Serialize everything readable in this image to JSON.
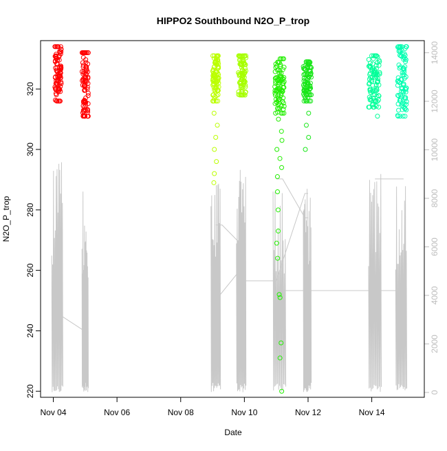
{
  "chart_data": {
    "type": "scatter",
    "title": "HIPPO2 Southbound N2O_P_trop",
    "xlabel": "Date",
    "ylabel": "N2O_P_trop",
    "y2label": "",
    "x_range_days": [
      3.6,
      15.65
    ],
    "x_origin": "Nov 00",
    "ylim": [
      218,
      336
    ],
    "y2lim": [
      -200,
      14500
    ],
    "x_ticks": [
      {
        "value": 4,
        "label": "Nov 04"
      },
      {
        "value": 6,
        "label": "Nov 06"
      },
      {
        "value": 8,
        "label": "Nov 08"
      },
      {
        "value": 10,
        "label": "Nov 10"
      },
      {
        "value": 12,
        "label": "Nov 12"
      },
      {
        "value": 14,
        "label": "Nov 14"
      }
    ],
    "y_ticks": [
      {
        "value": 220,
        "label": "220"
      },
      {
        "value": 240,
        "label": "240"
      },
      {
        "value": 260,
        "label": "260"
      },
      {
        "value": 280,
        "label": "280"
      },
      {
        "value": 300,
        "label": "300"
      },
      {
        "value": 320,
        "label": "320"
      }
    ],
    "y2_ticks": [
      {
        "value": 0,
        "label": "0"
      },
      {
        "value": 2000,
        "label": "2000"
      },
      {
        "value": 4000,
        "label": "4000"
      },
      {
        "value": 6000,
        "label": "6000"
      },
      {
        "value": 8000,
        "label": "8000"
      },
      {
        "value": 10000,
        "label": "10000"
      },
      {
        "value": 12000,
        "label": "12000"
      },
      {
        "value": 14000,
        "label": "14000"
      }
    ],
    "grid": false,
    "legend": "none",
    "series": [
      {
        "color": "#ff0000",
        "x": [
          4.05,
          4.25
        ],
        "y_range": [
          316,
          334
        ],
        "tail": []
      },
      {
        "color": "#ff0000",
        "x": [
          4.9,
          5.1
        ],
        "y_range": [
          311,
          332
        ],
        "tail": []
      },
      {
        "color": "#bbff00",
        "x": [
          9.0,
          9.2
        ],
        "y_range": [
          316,
          331
        ],
        "tail": [
          289,
          292,
          296,
          300,
          304,
          308,
          312
        ]
      },
      {
        "color": "#a6ff00",
        "x": [
          9.8,
          10.05
        ],
        "y_range": [
          318,
          331
        ],
        "tail": []
      },
      {
        "color": "#22ee00",
        "x": [
          10.95,
          11.25
        ],
        "y_range": [
          312,
          330
        ],
        "tail": [
          220,
          231,
          236,
          251,
          252,
          264,
          269,
          273,
          280,
          286,
          291,
          294,
          297,
          300,
          303,
          306,
          310
        ]
      },
      {
        "color": "#18e618",
        "x": [
          11.85,
          12.1
        ],
        "y_range": [
          316,
          329
        ],
        "tail": [
          300,
          304,
          308,
          312
        ]
      },
      {
        "color": "#00ff99",
        "x": [
          13.9,
          14.25
        ],
        "y_range": [
          314,
          331
        ],
        "tail": [
          311
        ]
      },
      {
        "color": "#00ffb0",
        "x": [
          14.8,
          15.1
        ],
        "y_range": [
          311,
          334
        ],
        "tail": []
      }
    ],
    "altitude_track": {
      "color": "#c8c8c8",
      "flights": [
        {
          "x": [
            3.95,
            4.3
          ],
          "max": 9500
        },
        {
          "x": [
            4.9,
            5.1
          ],
          "max": 8500
        },
        {
          "x": [
            8.95,
            9.25
          ],
          "max": 9000
        },
        {
          "x": [
            9.75,
            10.05
          ],
          "max": 9200
        },
        {
          "x": [
            10.9,
            11.3
          ],
          "max": 8700
        },
        {
          "x": [
            11.85,
            12.1
          ],
          "max": 9000
        },
        {
          "x": [
            13.9,
            14.3
          ],
          "max": 9200
        },
        {
          "x": [
            14.75,
            15.1
          ],
          "max": 8800
        }
      ],
      "connectors": [
        [
          [
            4.1,
            4200
          ],
          [
            4.2,
            3200
          ],
          [
            4.9,
            2600
          ],
          [
            5.0,
            2200
          ]
        ],
        [
          [
            9.0,
            3500
          ],
          [
            9.1,
            3800
          ],
          [
            9.9,
            5100
          ],
          [
            10.0,
            4800
          ]
        ],
        [
          [
            9.1,
            6900
          ],
          [
            9.3,
            6900
          ],
          [
            9.9,
            6100
          ],
          [
            10.0,
            6100
          ]
        ],
        [
          [
            10.0,
            4600
          ],
          [
            11.0,
            4600
          ],
          [
            11.9,
            8200
          ],
          [
            12.0,
            8200
          ]
        ],
        [
          [
            11.0,
            8800
          ],
          [
            11.2,
            8800
          ],
          [
            11.9,
            7200
          ],
          [
            12.0,
            7200
          ]
        ],
        [
          [
            11.2,
            4200
          ],
          [
            13.9,
            4200
          ],
          [
            14.8,
            4200
          ],
          [
            14.9,
            4200
          ]
        ],
        [
          [
            14.1,
            8800
          ],
          [
            14.3,
            8800
          ],
          [
            14.9,
            8800
          ],
          [
            15.0,
            8800
          ]
        ]
      ]
    }
  }
}
